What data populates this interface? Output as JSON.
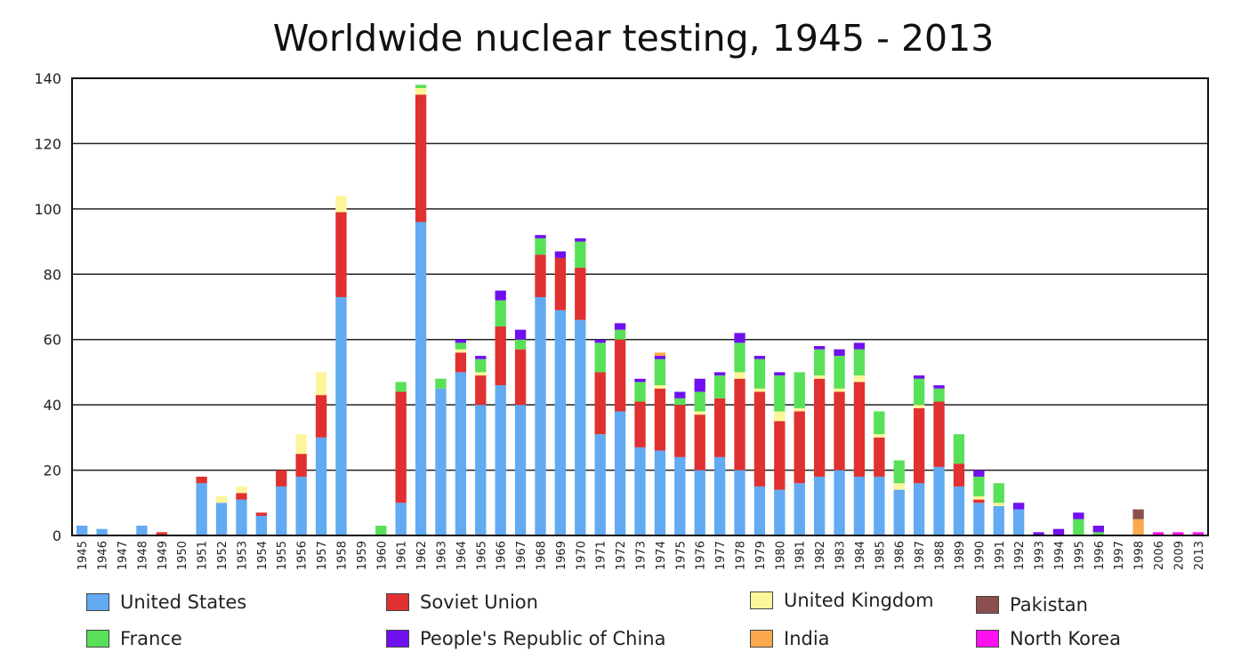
{
  "chart_data": {
    "type": "bar",
    "stacked": true,
    "title": "Worldwide nuclear testing, 1945 - 2013",
    "xlabel": "",
    "ylabel": "",
    "ylim": [
      0,
      140
    ],
    "yticks": [
      0,
      20,
      40,
      60,
      80,
      100,
      120,
      140
    ],
    "grid": true,
    "legend_position": "bottom",
    "categories": [
      "1945",
      "1946",
      "1947",
      "1948",
      "1949",
      "1950",
      "1951",
      "1952",
      "1953",
      "1954",
      "1955",
      "1956",
      "1957",
      "1958",
      "1959",
      "1960",
      "1961",
      "1962",
      "1963",
      "1964",
      "1965",
      "1966",
      "1967",
      "1968",
      "1969",
      "1970",
      "1971",
      "1972",
      "1973",
      "1974",
      "1975",
      "1976",
      "1977",
      "1978",
      "1979",
      "1980",
      "1981",
      "1982",
      "1983",
      "1984",
      "1985",
      "1986",
      "1987",
      "1988",
      "1989",
      "1990",
      "1991",
      "1992",
      "1993",
      "1994",
      "1995",
      "1996",
      "1997",
      "1998",
      "2006",
      "2009",
      "2013"
    ],
    "series": [
      {
        "name": "United States",
        "color": "#62aaf2",
        "values": [
          3,
          2,
          0,
          3,
          0,
          0,
          16,
          10,
          11,
          6,
          15,
          18,
          30,
          73,
          0,
          0,
          10,
          96,
          45,
          50,
          40,
          46,
          40,
          73,
          69,
          66,
          31,
          38,
          27,
          26,
          24,
          20,
          24,
          20,
          15,
          14,
          16,
          18,
          20,
          18,
          18,
          14,
          16,
          21,
          15,
          10,
          9,
          8,
          0,
          0,
          0,
          0,
          0,
          0,
          0,
          0,
          0
        ]
      },
      {
        "name": "Soviet Union",
        "color": "#e03030",
        "values": [
          0,
          0,
          0,
          0,
          1,
          0,
          2,
          0,
          2,
          1,
          5,
          7,
          13,
          26,
          0,
          0,
          34,
          39,
          0,
          6,
          9,
          18,
          17,
          13,
          16,
          16,
          19,
          22,
          14,
          19,
          16,
          17,
          18,
          28,
          29,
          21,
          22,
          30,
          24,
          29,
          12,
          0,
          23,
          20,
          7,
          1,
          0,
          0,
          0,
          0,
          0,
          0,
          0,
          0,
          0,
          0,
          0
        ]
      },
      {
        "name": "United Kingdom",
        "color": "#fdf59a",
        "values": [
          0,
          0,
          0,
          0,
          0,
          0,
          0,
          2,
          2,
          0,
          0,
          6,
          7,
          5,
          0,
          0,
          0,
          2,
          0,
          1,
          1,
          0,
          0,
          0,
          0,
          0,
          0,
          0,
          0,
          1,
          0,
          1,
          0,
          2,
          1,
          3,
          1,
          1,
          1,
          2,
          1,
          2,
          1,
          0,
          0,
          1,
          1,
          0,
          0,
          0,
          0,
          0,
          0,
          0,
          0,
          0,
          0
        ]
      },
      {
        "name": "France",
        "color": "#58e058",
        "values": [
          0,
          0,
          0,
          0,
          0,
          0,
          0,
          0,
          0,
          0,
          0,
          0,
          0,
          0,
          0,
          3,
          3,
          1,
          3,
          2,
          4,
          8,
          3,
          5,
          0,
          8,
          9,
          3,
          6,
          8,
          2,
          6,
          7,
          9,
          9,
          11,
          11,
          8,
          10,
          8,
          7,
          7,
          8,
          4,
          9,
          6,
          6,
          0,
          0,
          0,
          5,
          1,
          0,
          0,
          0,
          0,
          0
        ]
      },
      {
        "name": "People's Republic of China",
        "color": "#7010f0",
        "values": [
          0,
          0,
          0,
          0,
          0,
          0,
          0,
          0,
          0,
          0,
          0,
          0,
          0,
          0,
          0,
          0,
          0,
          0,
          0,
          1,
          1,
          3,
          3,
          1,
          2,
          1,
          1,
          2,
          1,
          1,
          2,
          4,
          1,
          3,
          1,
          1,
          0,
          1,
          2,
          2,
          0,
          0,
          1,
          1,
          0,
          2,
          0,
          2,
          1,
          2,
          2,
          2,
          0,
          0,
          0,
          0,
          0
        ]
      },
      {
        "name": "India",
        "color": "#fca84c",
        "values": [
          0,
          0,
          0,
          0,
          0,
          0,
          0,
          0,
          0,
          0,
          0,
          0,
          0,
          0,
          0,
          0,
          0,
          0,
          0,
          0,
          0,
          0,
          0,
          0,
          0,
          0,
          0,
          0,
          0,
          1,
          0,
          0,
          0,
          0,
          0,
          0,
          0,
          0,
          0,
          0,
          0,
          0,
          0,
          0,
          0,
          0,
          0,
          0,
          0,
          0,
          0,
          0,
          0,
          5,
          0,
          0,
          0
        ]
      },
      {
        "name": "Pakistan",
        "color": "#8a5050",
        "values": [
          0,
          0,
          0,
          0,
          0,
          0,
          0,
          0,
          0,
          0,
          0,
          0,
          0,
          0,
          0,
          0,
          0,
          0,
          0,
          0,
          0,
          0,
          0,
          0,
          0,
          0,
          0,
          0,
          0,
          0,
          0,
          0,
          0,
          0,
          0,
          0,
          0,
          0,
          0,
          0,
          0,
          0,
          0,
          0,
          0,
          0,
          0,
          0,
          0,
          0,
          0,
          0,
          0,
          3,
          0,
          0,
          0
        ]
      },
      {
        "name": "North Korea",
        "color": "#ff10f0",
        "values": [
          0,
          0,
          0,
          0,
          0,
          0,
          0,
          0,
          0,
          0,
          0,
          0,
          0,
          0,
          0,
          0,
          0,
          0,
          0,
          0,
          0,
          0,
          0,
          0,
          0,
          0,
          0,
          0,
          0,
          0,
          0,
          0,
          0,
          0,
          0,
          0,
          0,
          0,
          0,
          0,
          0,
          0,
          0,
          0,
          0,
          0,
          0,
          0,
          0,
          0,
          0,
          0,
          0,
          0,
          1,
          1,
          1
        ]
      }
    ]
  },
  "legend": {
    "items": [
      {
        "label": "United States",
        "color": "#62aaf2"
      },
      {
        "label": "Soviet Union",
        "color": "#e03030"
      },
      {
        "label": "United Kingdom",
        "color": "#fdf59a"
      },
      {
        "label": "Pakistan",
        "color": "#8a5050"
      },
      {
        "label": "France",
        "color": "#58e058"
      },
      {
        "label": "People's Republic of China",
        "color": "#7010f0"
      },
      {
        "label": "India",
        "color": "#fca84c"
      },
      {
        "label": "North Korea",
        "color": "#ff10f0"
      }
    ]
  }
}
